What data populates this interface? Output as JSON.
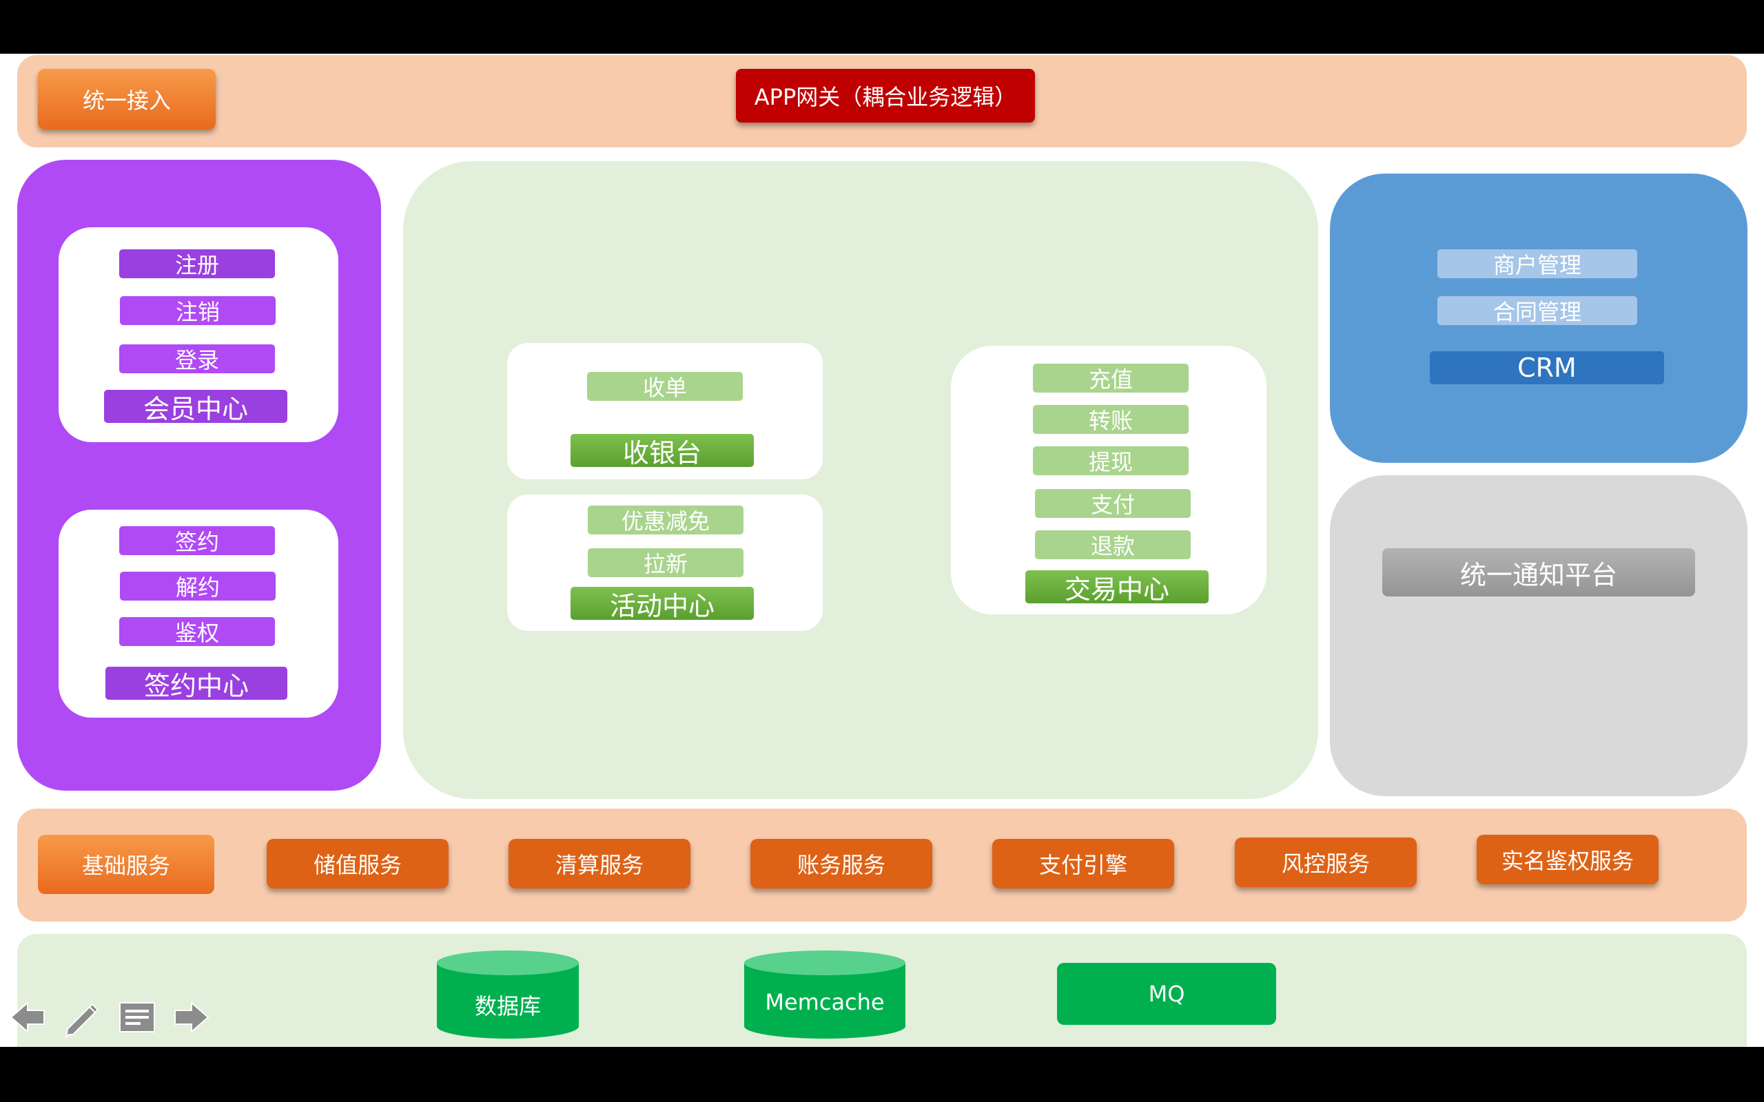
{
  "gateway": {
    "unified_access": "统一接入",
    "app_gateway": "APP网关（耦合业务逻辑）"
  },
  "member_panel": {
    "member_items": [
      "注册",
      "注销",
      "登录"
    ],
    "member_title": "会员中心",
    "sign_items": [
      "签约",
      "解约",
      "鉴权"
    ],
    "sign_title": "签约中心"
  },
  "trade_panel": {
    "cashier_items": [
      "收单"
    ],
    "cashier_title": "收银台",
    "activity_items": [
      "优惠减免",
      "拉新"
    ],
    "activity_title": "活动中心",
    "trade_items": [
      "充值",
      "转账",
      "提现",
      "支付",
      "退款"
    ],
    "trade_title": "交易中心"
  },
  "merchant_panel": {
    "items": [
      "商户管理",
      "合同管理"
    ],
    "title": "CRM"
  },
  "notify_panel": {
    "title": "统一通知平台"
  },
  "services": {
    "label": "基础服务",
    "items": [
      "储值服务",
      "清算服务",
      "账务服务",
      "支付引擎",
      "风控服务",
      "实名鉴权服务"
    ]
  },
  "storage": {
    "items": [
      "数据库",
      "Memcache",
      "MQ"
    ]
  },
  "toolbar": {
    "icons": [
      "arrow-left-icon",
      "pencil-icon",
      "notes-icon",
      "arrow-right-icon"
    ]
  },
  "colors": {
    "purple": "#b04af5",
    "light_green": "#e2efda",
    "blue": "#5b9bd5",
    "grey": "#d9d9d9",
    "orange": "#e96a1e",
    "band_orange": "#f8cbad",
    "gateway_red": "#c00000",
    "db_green": "#00b04f"
  }
}
